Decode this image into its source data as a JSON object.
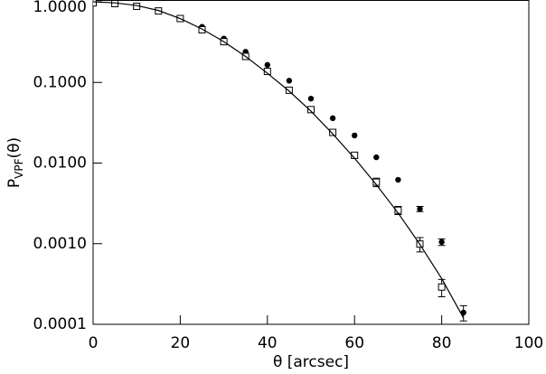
{
  "chart_data": {
    "type": "scatter",
    "xlabel": "θ   [arcsec]",
    "ylabel": "P",
    "ylabel_sub": "VPF",
    "ylabel_arg": "(θ)",
    "xlim": [
      0,
      100
    ],
    "xticks": [
      0,
      20,
      40,
      60,
      80,
      100
    ],
    "ylim": [
      0.0001,
      1.0
    ],
    "ylog": true,
    "yticks": [
      {
        "value": 1,
        "label": "1.0000"
      },
      {
        "value": 0.1,
        "label": "0.1000"
      },
      {
        "value": 0.01,
        "label": "0.0100"
      },
      {
        "value": 0.001,
        "label": "0.0010"
      },
      {
        "value": 0.0001,
        "label": "0.0001"
      }
    ],
    "series": [
      {
        "marker": "circle",
        "color": "#000000",
        "x": [
          0,
          5,
          10,
          15,
          20,
          25,
          30,
          35,
          40,
          45,
          50,
          55,
          60,
          65,
          70,
          75,
          80,
          85
        ],
        "values": [
          0.97,
          0.95,
          0.88,
          0.77,
          0.63,
          0.49,
          0.35,
          0.24,
          0.165,
          0.105,
          0.063,
          0.036,
          0.022,
          0.0118,
          0.0062,
          0.0027,
          0.00105,
          0.00014
        ],
        "errors": [
          null,
          null,
          null,
          null,
          null,
          null,
          null,
          null,
          null,
          null,
          null,
          null,
          null,
          null,
          null,
          0.0002,
          0.0001,
          3e-05
        ]
      },
      {
        "marker": "square",
        "color": "#000000",
        "x": [
          0,
          5,
          10,
          15,
          20,
          25,
          30,
          35,
          40,
          45,
          50,
          55,
          60,
          65,
          70,
          75,
          80
        ],
        "values": [
          0.97,
          0.95,
          0.88,
          0.77,
          0.62,
          0.45,
          0.32,
          0.21,
          0.137,
          0.08,
          0.046,
          0.024,
          0.0125,
          0.0058,
          0.0026,
          0.00099,
          0.00029
        ],
        "errors": [
          null,
          null,
          null,
          null,
          null,
          null,
          null,
          null,
          null,
          null,
          null,
          null,
          0.001,
          0.0007,
          0.0003,
          0.0002,
          7e-05
        ]
      },
      {
        "marker": "line",
        "color": "#000000",
        "x": [
          0,
          5,
          10,
          15,
          20,
          25,
          30,
          35,
          40,
          45,
          50,
          55,
          60,
          65,
          70,
          75,
          80,
          85
        ],
        "values": [
          1.0,
          0.97,
          0.9,
          0.78,
          0.62,
          0.46,
          0.32,
          0.21,
          0.13,
          0.078,
          0.044,
          0.023,
          0.0115,
          0.0054,
          0.0024,
          0.00098,
          0.00037,
          0.00012
        ]
      }
    ]
  }
}
